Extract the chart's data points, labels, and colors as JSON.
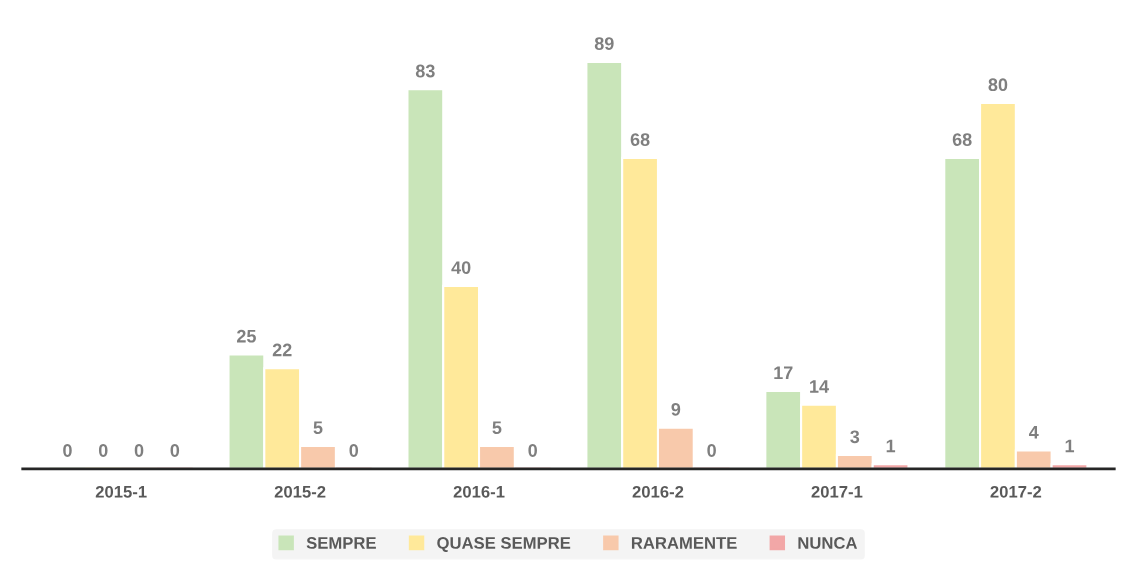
{
  "chart_data": {
    "type": "bar",
    "categories": [
      "2015-1",
      "2015-2",
      "2016-1",
      "2016-2",
      "2017-1",
      "2017-2"
    ],
    "series": [
      {
        "name": "SEMPRE",
        "color": "#c9e5b9",
        "values": [
          0,
          25,
          83,
          89,
          17,
          68
        ]
      },
      {
        "name": "QUASE SEMPRE",
        "color": "#ffe99a",
        "values": [
          0,
          22,
          40,
          68,
          14,
          80
        ]
      },
      {
        "name": "RARAMENTE",
        "color": "#f8c9ab",
        "values": [
          0,
          5,
          5,
          9,
          3,
          4
        ]
      },
      {
        "name": "NUNCA",
        "color": "#f2a7a7",
        "values": [
          0,
          0,
          0,
          0,
          1,
          1
        ]
      }
    ],
    "data_labels": true,
    "legend": "bottom",
    "grid": false
  }
}
